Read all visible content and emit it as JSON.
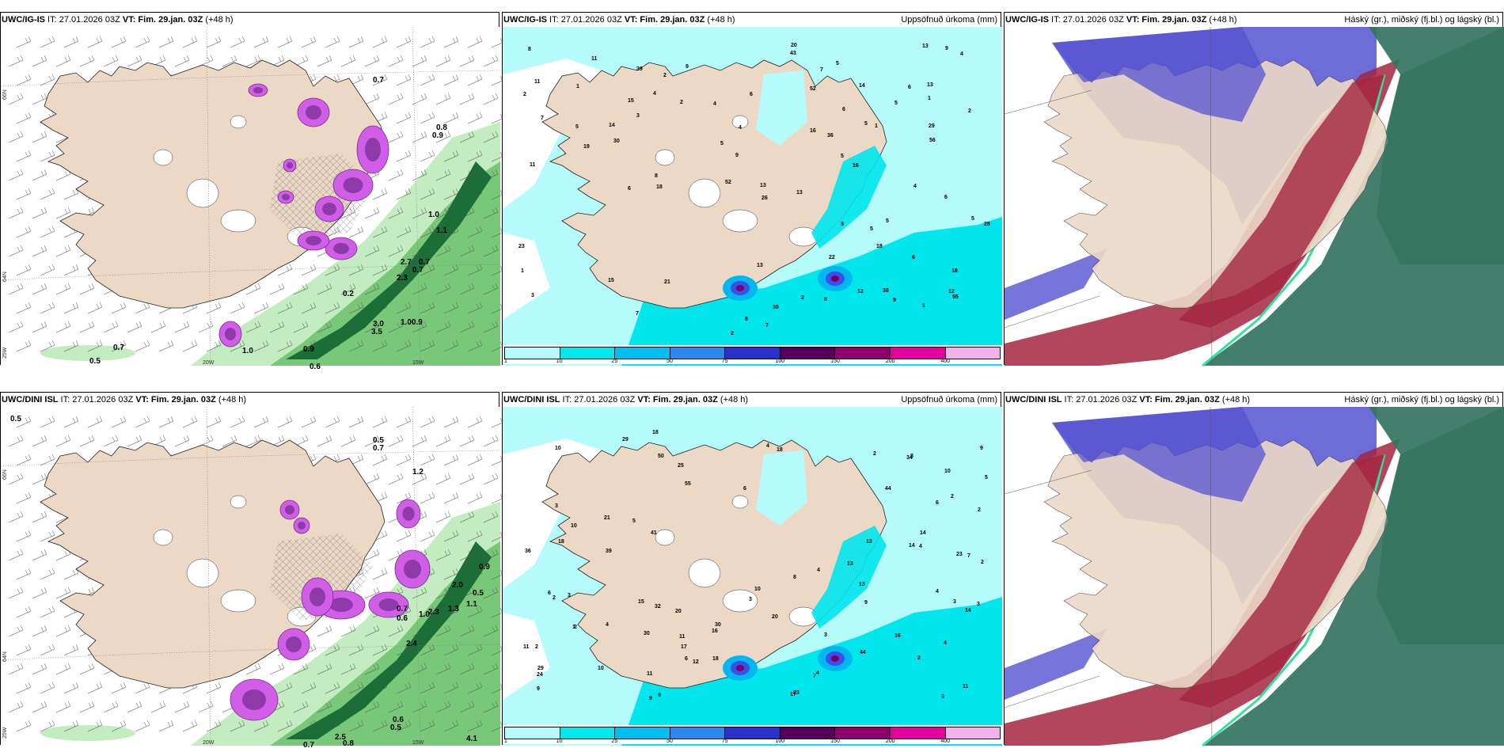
{
  "panels": [
    {
      "id": "top-left",
      "model": "UWC/IG-IS",
      "init_label": " IT: 27.01.2026 03Z ",
      "vt_label": "VT: Fim. 29.jan. 03Z",
      "lead_label": " (+48 h)",
      "right_title": "",
      "lat_labels": [
        "66N",
        "64N",
        "25W"
      ],
      "lon_labels": [
        "20W",
        "15W"
      ],
      "values": [
        "0.7",
        "0.5",
        "1.0",
        "0.7",
        "0.9",
        "0.6",
        "3.0",
        "3.5",
        "1.00.9",
        "2.7",
        "2.3",
        "0.7",
        "1.0",
        "1.1",
        "0.8",
        "0.9",
        "0.2",
        "0.7"
      ]
    },
    {
      "id": "top-middle",
      "model": "UWC/IG-IS",
      "init_label": " IT: 27.01.2026 03Z ",
      "vt_label": "VT: Fim. 29.jan. 03Z",
      "lead_label": " (+48 h)",
      "right_title": "Uppsöfnuð úrkoma (mm)",
      "values": [
        "7",
        "3",
        "5",
        "8",
        "6",
        "2",
        "3",
        "18",
        "13",
        "28",
        "5",
        "4",
        "5",
        "15",
        "11",
        "7",
        "8",
        "4",
        "1",
        "2",
        "9",
        "6",
        "9",
        "13",
        "14",
        "30",
        "1",
        "7",
        "11",
        "6",
        "23",
        "8",
        "9",
        "5",
        "11",
        "39",
        "2",
        "52",
        "43",
        "1",
        "1",
        "15",
        "5",
        "38",
        "30",
        "2",
        "2",
        "4",
        "18",
        "5",
        "4",
        "36",
        "52",
        "5",
        "6",
        "2",
        "3",
        "18",
        "12",
        "16",
        "5",
        "8",
        "29",
        "4",
        "7",
        "1",
        "26",
        "20",
        "6",
        "13",
        "13",
        "12",
        "21",
        "22",
        "19",
        "14",
        "9",
        "5",
        "6",
        "55",
        "56",
        "13",
        "16"
      ],
      "colorbar": {
        "labels": [
          "1",
          "10",
          "25",
          "50",
          "75",
          "100",
          "150",
          "200",
          "400"
        ]
      }
    },
    {
      "id": "top-right",
      "model": "UWC/IG-IS",
      "init_label": " IT: 27.01.2026 03Z ",
      "vt_label": "VT: Fim. 29.jan. 03Z",
      "lead_label": " (+48 h)",
      "right_title": "Háský (gr.), miðský (fj.bl.) og lágský (bl.)"
    },
    {
      "id": "bottom-left",
      "model": "UWC/DINI ISL",
      "init_label": " IT: 27.01.2026 03Z ",
      "vt_label": "VT: Fim. 29.jan. 03Z",
      "lead_label": " (+48 h)",
      "right_title": "",
      "lat_labels": [
        "66N",
        "64N",
        "25W"
      ],
      "lon_labels": [
        "20W",
        "15W"
      ],
      "values": [
        "0.5",
        "1.2",
        "0.9",
        "2.0",
        "0.7",
        "0.6",
        "1.0",
        "1.1",
        "0.5",
        "2.3",
        "1.3",
        "2.4",
        "0.7",
        "0.6",
        "0.5",
        "0.8",
        "2.5",
        "4.1",
        "0.7",
        "0.5"
      ]
    },
    {
      "id": "bottom-middle",
      "model": "UWC/DINI ISL",
      "init_label": " IT: 27.01.2026 03Z ",
      "vt_label": "VT: Fim. 29.jan. 03Z",
      "lead_label": " (+48 h)",
      "right_title": "Uppsöfnuð úrkoma (mm)",
      "values": [
        "5",
        "2",
        "3",
        "6",
        "3",
        "7",
        "3",
        "32",
        "10",
        "29",
        "4",
        "2",
        "4",
        "2",
        "4",
        "3",
        "3",
        "2",
        "1",
        "14",
        "10",
        "8",
        "11",
        "9",
        "5",
        "8",
        "6",
        "2",
        "3",
        "13",
        "14",
        "14",
        "10",
        "30",
        "10",
        "7",
        "3",
        "30",
        "16",
        "9",
        "4",
        "39",
        "2",
        "18",
        "41",
        "50",
        "17",
        "24",
        "23",
        "55",
        "44",
        "36",
        "4",
        "2",
        "4",
        "11",
        "17",
        "16",
        "2",
        "8",
        "4",
        "21",
        "25",
        "20",
        "15",
        "9",
        "23",
        "20",
        "13",
        "11",
        "12",
        "13",
        "44",
        "18",
        "18",
        "18",
        "11",
        "10",
        "9",
        "6",
        "6",
        "29",
        "34"
      ],
      "colorbar": {
        "labels": [
          "1",
          "10",
          "25",
          "50",
          "75",
          "100",
          "150",
          "200",
          "400"
        ]
      }
    },
    {
      "id": "bottom-right",
      "model": "UWC/DINI ISL",
      "init_label": " IT: 27.01.2026 03Z ",
      "vt_label": "VT: Fim. 29.jan. 03Z",
      "lead_label": " (+48 h)",
      "right_title": "Háský (gr.), miðský (fj.bl.) og lágský (bl.)"
    }
  ],
  "colors": {
    "land": "#ebd9c6",
    "sea": "#ffffff",
    "precip_light": "#b6fbfb",
    "precip_mid": "#00e6ec",
    "precip_blue": "#00b7f0",
    "precip_dark": "#3b50e6",
    "precip_purple": "#780066",
    "green_light": "#c3ecc0",
    "green_mid": "#79c879",
    "green_dark": "#1b6e36",
    "snow_purple": "#d15ee6",
    "cloud_high": "#33745f",
    "cloud_mid": "#a3263f",
    "cloud_low": "#5552cf"
  },
  "colorbar_colors": [
    "#b5fafa",
    "#00e8ec",
    "#00bff0",
    "#2b88f0",
    "#2732c8",
    "#54005a",
    "#8f006f",
    "#e600a0",
    "#f5b0f0"
  ]
}
